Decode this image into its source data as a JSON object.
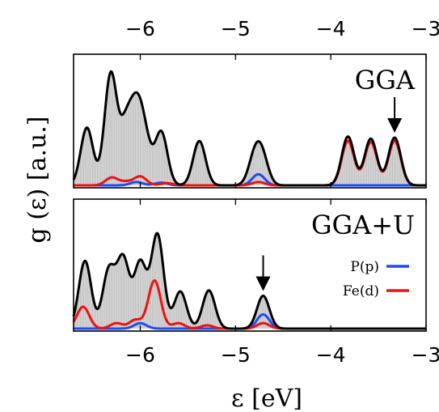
{
  "chart_data": {
    "type": "area",
    "xlabel": "ε [eV]",
    "ylabel": "g (ε)  [a.u.]",
    "xlim": [
      -6.7,
      -3.0
    ],
    "xticks": [
      -6,
      -5,
      -4,
      -3
    ],
    "xtick_labels": [
      "−6",
      "−5",
      "−4",
      "−3"
    ],
    "grid": false,
    "shared_x_axis": true,
    "colors": {
      "total": "#000000",
      "fill": "#d8d8d8",
      "P_p": "#1a4bff",
      "Fe_d": "#ee1111"
    },
    "panels": [
      {
        "label": "GGA",
        "annotation": {
          "type": "arrow-down",
          "x": -3.33
        },
        "series": [
          {
            "name": "",
            "role": "total",
            "peaks": [
              {
                "x": -6.56,
                "h": 0.52
              },
              {
                "x": -6.31,
                "h": 1.0
              },
              {
                "x": -6.15,
                "h": 0.5
              },
              {
                "x": -6.04,
                "h": 0.58
              },
              {
                "x": -5.95,
                "h": 0.36
              },
              {
                "x": -5.78,
                "h": 0.48
              },
              {
                "x": -5.38,
                "h": 0.4
              },
              {
                "x": -4.8,
                "h": 0.24
              },
              {
                "x": -4.72,
                "h": 0.24
              },
              {
                "x": -3.82,
                "h": 0.44
              },
              {
                "x": -3.58,
                "h": 0.42
              },
              {
                "x": -3.33,
                "h": 0.43
              }
            ]
          },
          {
            "name": "P(p)",
            "role": "component",
            "peaks": [
              {
                "x": -6.04,
                "h": 0.03
              },
              {
                "x": -5.78,
                "h": 0.025
              },
              {
                "x": -4.76,
                "h": 0.1
              }
            ]
          },
          {
            "name": "Fe(d)",
            "role": "component",
            "peaks": [
              {
                "x": -6.3,
                "h": 0.07
              },
              {
                "x": -6.15,
                "h": 0.03
              },
              {
                "x": -6.0,
                "h": 0.08
              },
              {
                "x": -5.72,
                "h": 0.02
              },
              {
                "x": -4.76,
                "h": 0.03
              },
              {
                "x": -3.82,
                "h": 0.4
              },
              {
                "x": -3.58,
                "h": 0.39
              },
              {
                "x": -3.33,
                "h": 0.4
              }
            ]
          }
        ]
      },
      {
        "label": "GGA+U",
        "annotation": {
          "type": "arrow-down",
          "x": -4.71
        },
        "series": [
          {
            "name": "",
            "role": "total",
            "peaks": [
              {
                "x": -6.58,
                "h": 0.62
              },
              {
                "x": -6.33,
                "h": 0.53
              },
              {
                "x": -6.18,
                "h": 0.63
              },
              {
                "x": -6.0,
                "h": 0.6
              },
              {
                "x": -5.82,
                "h": 0.86
              },
              {
                "x": -5.58,
                "h": 0.34
              },
              {
                "x": -5.28,
                "h": 0.35
              },
              {
                "x": -4.71,
                "h": 0.3
              }
            ]
          },
          {
            "name": "P(p)",
            "role": "component",
            "peaks": [
              {
                "x": -6.0,
                "h": 0.05
              },
              {
                "x": -4.71,
                "h": 0.13
              }
            ]
          },
          {
            "name": "Fe(d)",
            "role": "component",
            "peaks": [
              {
                "x": -6.6,
                "h": 0.2
              },
              {
                "x": -6.25,
                "h": 0.05
              },
              {
                "x": -6.05,
                "h": 0.08
              },
              {
                "x": -5.85,
                "h": 0.44
              },
              {
                "x": -5.6,
                "h": 0.05
              },
              {
                "x": -5.3,
                "h": 0.03
              },
              {
                "x": -4.71,
                "h": 0.05
              }
            ]
          }
        ]
      }
    ],
    "legend": {
      "location": "lower panel, right",
      "entries": [
        {
          "label": "P(p)",
          "color": "#1a4bff"
        },
        {
          "label": "Fe(d)",
          "color": "#ee1111"
        }
      ]
    }
  }
}
